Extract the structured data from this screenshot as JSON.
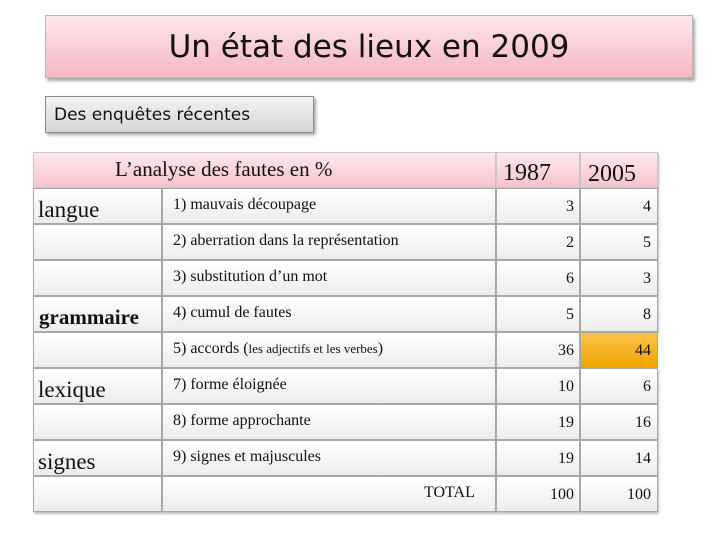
{
  "title": "Un état des lieux en 2009",
  "subtitle": "Des enquêtes récentes",
  "table": {
    "header": "L’analyse des fautes en %",
    "year_a": "1987",
    "year_b": "2005",
    "categories": {
      "langue": "langue",
      "grammaire": "grammaire",
      "lexique": "lexique",
      "signes": "signes"
    },
    "rows": [
      {
        "label": "1) mauvais découpage",
        "v1987": "3",
        "v2005": "4"
      },
      {
        "label": "2) aberration dans la représentation",
        "v1987": "2",
        "v2005": "5"
      },
      {
        "label": "3) substitution d’un mot",
        "v1987": "6",
        "v2005": "3"
      },
      {
        "label": "4) cumul de fautes",
        "v1987": "5",
        "v2005": "8"
      },
      {
        "label_main": "5) accords (",
        "label_small": "les adjectifs et les verbes",
        "label_end": ")",
        "v1987": "36",
        "v2005": "44",
        "highlight": "#f4a900"
      },
      {
        "label": "7) forme éloignée",
        "v1987": "10",
        "v2005": "6"
      },
      {
        "label": "8) forme approchante",
        "v1987": "19",
        "v2005": "16"
      },
      {
        "label": "9) signes et majuscules",
        "v1987": "19",
        "v2005": "14"
      }
    ],
    "total": {
      "label": "TOTAL",
      "v1987": "100",
      "v2005": "100"
    }
  }
}
